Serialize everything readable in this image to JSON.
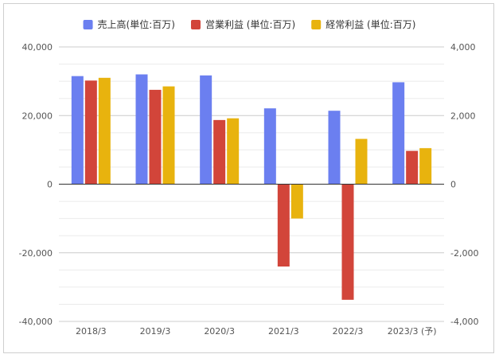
{
  "chart_data": {
    "type": "bar",
    "categories": [
      "2018/3",
      "2019/3",
      "2020/3",
      "2021/3",
      "2022/3",
      "2023/3 (予)"
    ],
    "series": [
      {
        "name": "売上高(単位:百万)",
        "axis": "left",
        "color": "#6b7ff0",
        "values": [
          31500,
          32000,
          31700,
          22100,
          21400,
          29700
        ]
      },
      {
        "name": "営業利益 (単位:百万)",
        "axis": "right",
        "color": "#d2453a",
        "values": [
          3020,
          2750,
          1870,
          -2400,
          -3370,
          970
        ]
      },
      {
        "name": "経常利益 (単位:百万)",
        "axis": "right",
        "color": "#e8b30e",
        "values": [
          3100,
          2850,
          1920,
          -1000,
          1320,
          1050
        ]
      }
    ],
    "y_left": {
      "min": -40000,
      "max": 40000,
      "ticks": [
        "40,000",
        "20,000",
        "0",
        "-20,000",
        "-40,000"
      ],
      "tick_values": [
        40000,
        20000,
        0,
        -20000,
        -40000
      ]
    },
    "y_right": {
      "min": -4000,
      "max": 4000,
      "ticks": [
        "4,000",
        "2,000",
        "0",
        "-2,000",
        "-4,000"
      ],
      "tick_values": [
        4000,
        2000,
        0,
        -2000,
        -4000
      ]
    },
    "grid": true,
    "legend_position": "top-center",
    "title": "",
    "xlabel": "",
    "ylabel": ""
  }
}
